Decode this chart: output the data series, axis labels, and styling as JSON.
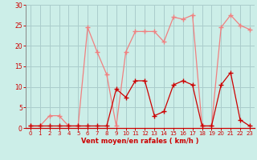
{
  "x": [
    0,
    1,
    2,
    3,
    4,
    5,
    6,
    7,
    8,
    9,
    10,
    11,
    12,
    13,
    14,
    15,
    16,
    17,
    18,
    19,
    20,
    21,
    22,
    23
  ],
  "rafales": [
    0.5,
    0.5,
    3,
    3,
    0.5,
    0.5,
    24.5,
    18.5,
    13,
    0.5,
    18.5,
    23.5,
    23.5,
    23.5,
    21,
    27,
    26.5,
    27.5,
    0.5,
    0.5,
    24.5,
    27.5,
    25,
    24
  ],
  "moyen": [
    0.5,
    0.5,
    0.5,
    0.5,
    0.5,
    0.5,
    0.5,
    0.5,
    0.5,
    9.5,
    7.5,
    11.5,
    11.5,
    3,
    4,
    10.5,
    11.5,
    10.5,
    0.5,
    0.5,
    10.5,
    13.5,
    2,
    0.5
  ],
  "color_rafales": "#f08080",
  "color_moyen": "#cc0000",
  "background_color": "#cceee8",
  "grid_color": "#aacccc",
  "text_color": "#cc0000",
  "xlabel": "Vent moyen/en rafales ( km/h )",
  "ylim": [
    0,
    30
  ],
  "xlim_min": -0.5,
  "xlim_max": 23.5,
  "yticks": [
    0,
    5,
    10,
    15,
    20,
    25,
    30
  ],
  "xticks": [
    0,
    1,
    2,
    3,
    4,
    5,
    6,
    7,
    8,
    9,
    10,
    11,
    12,
    13,
    14,
    15,
    16,
    17,
    18,
    19,
    20,
    21,
    22,
    23
  ],
  "marker": "+",
  "markersize": 4,
  "linewidth": 0.9
}
